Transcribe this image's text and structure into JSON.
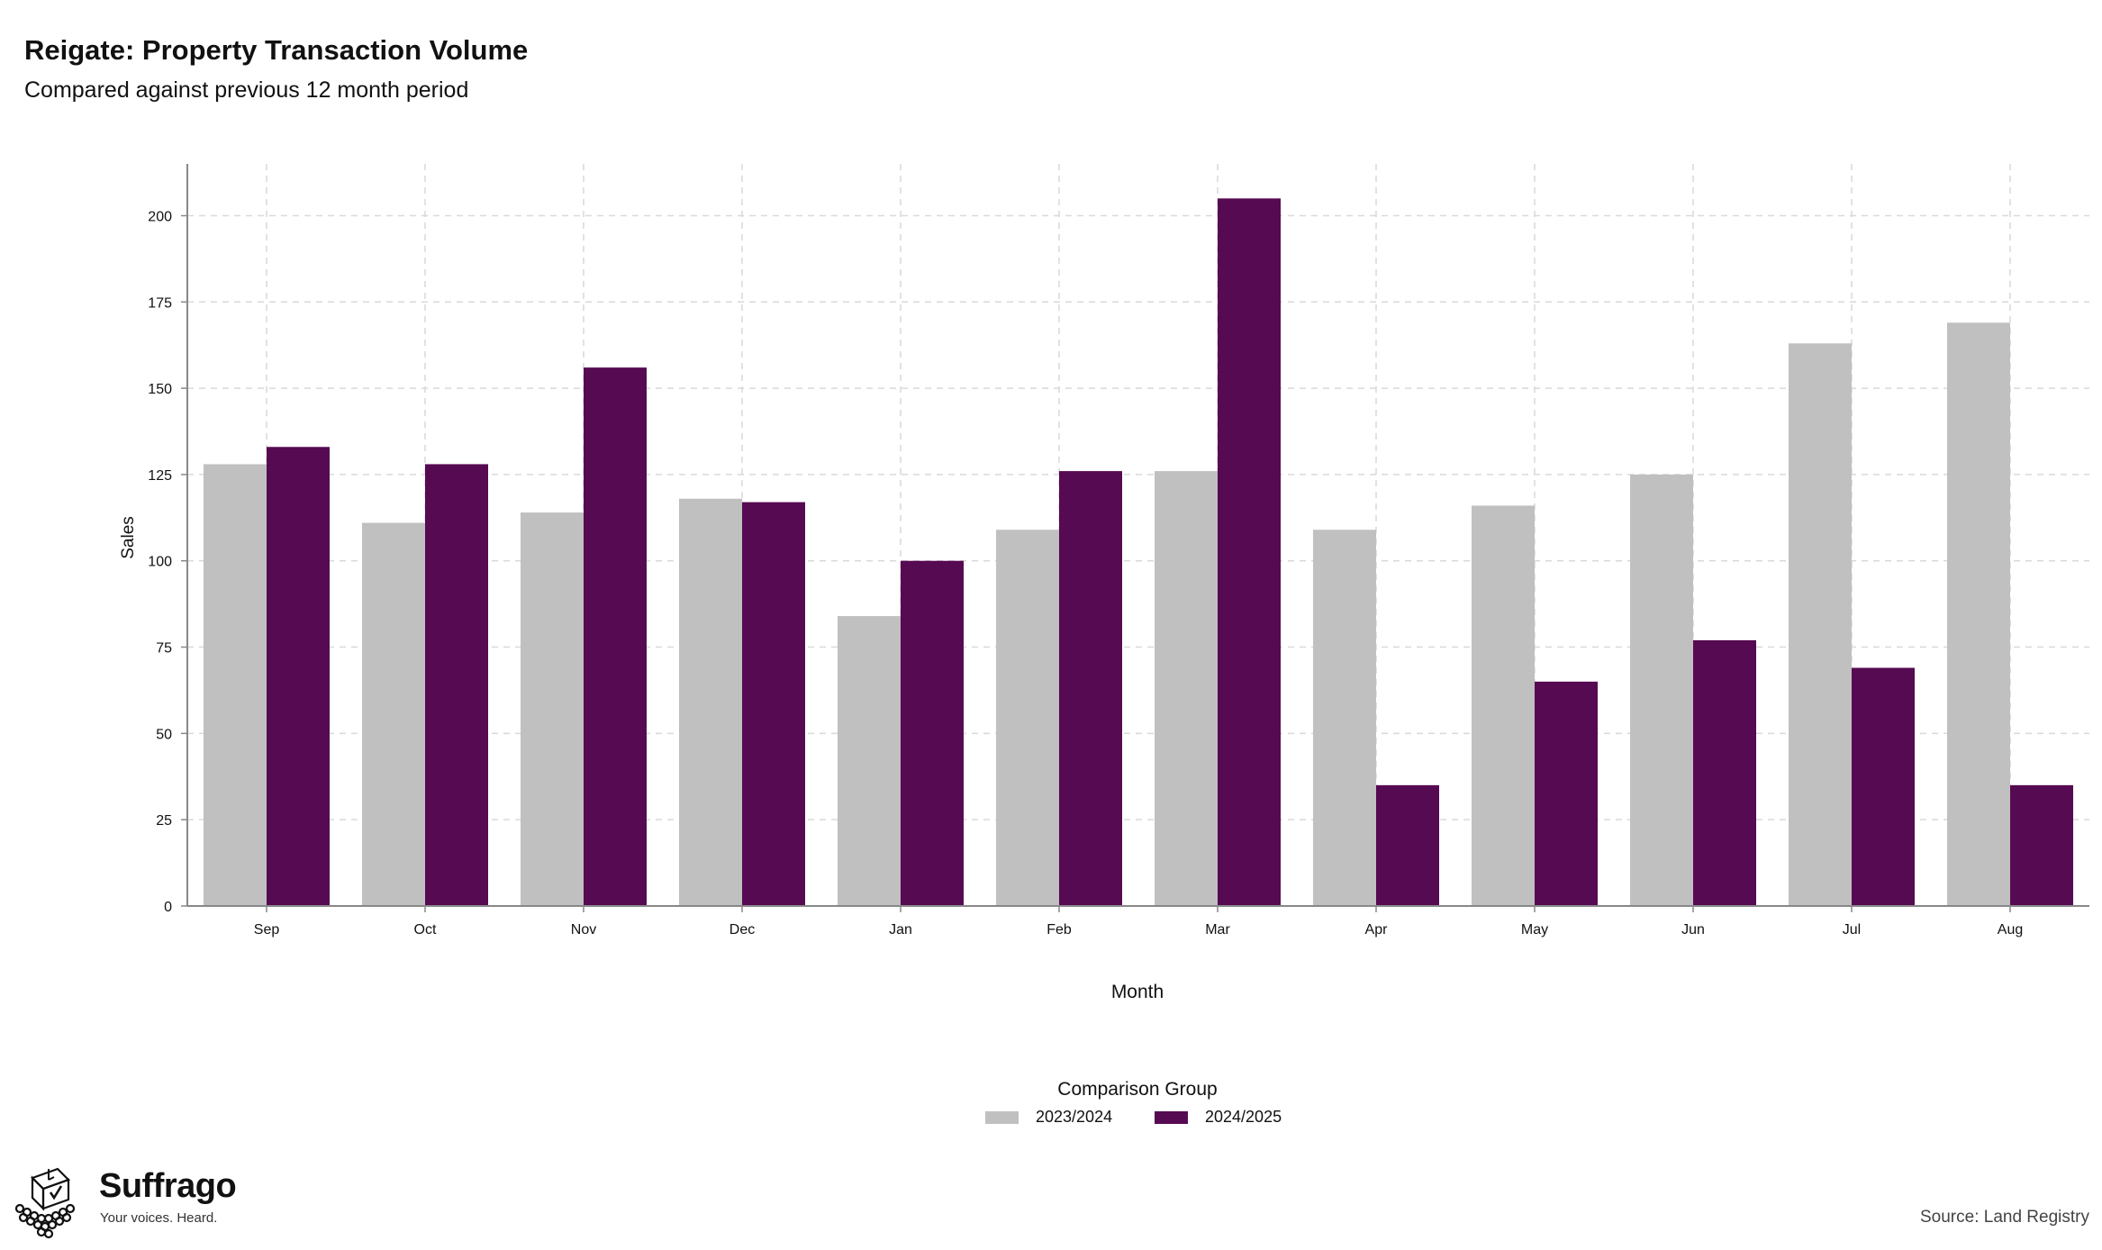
{
  "chart_data": {
    "type": "bar",
    "title": "Reigate: Property Transaction Volume",
    "subtitle": "Compared against previous 12 month period",
    "xlabel": "Month",
    "ylabel": "Sales",
    "categories": [
      "Sep",
      "Oct",
      "Nov",
      "Dec",
      "Jan",
      "Feb",
      "Mar",
      "Apr",
      "May",
      "Jun",
      "Jul",
      "Aug"
    ],
    "series": [
      {
        "name": "2023/2024",
        "color": "#c0c0c0",
        "values": [
          128,
          111,
          114,
          118,
          84,
          109,
          126,
          109,
          116,
          125,
          163,
          169
        ]
      },
      {
        "name": "2024/2025",
        "color": "#560a52",
        "values": [
          133,
          128,
          156,
          117,
          100,
          126,
          205,
          35,
          65,
          77,
          69,
          35
        ]
      }
    ],
    "ylim": [
      0,
      215
    ],
    "yticks": [
      0,
      25,
      50,
      75,
      100,
      125,
      150,
      175,
      200
    ],
    "grid": true,
    "legend": {
      "title": "Comparison Group",
      "position": "bottom"
    },
    "source": "Source: Land Registry"
  },
  "branding": {
    "name": "Suffrago",
    "tagline": "Your voices. Heard.",
    "logo_icon": "ballot-box-crowd-icon"
  }
}
